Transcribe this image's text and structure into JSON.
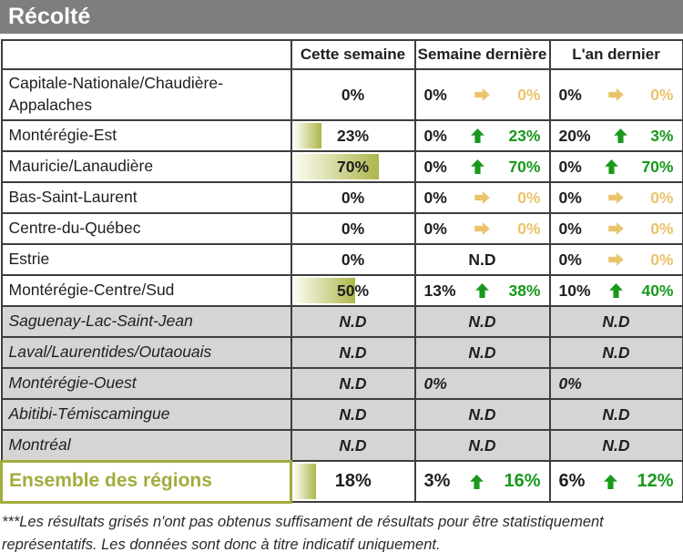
{
  "title": "Récolté",
  "header": {
    "columns": [
      "Cette semaine",
      "Semaine dernière",
      "L'an dernier"
    ]
  },
  "colors": {
    "title_bar": "#7e7e7e",
    "border": "#3e3e3e",
    "grayed_bg": "#d5d5d5",
    "up_green": "#18991b",
    "flat_gold": "#eac46c",
    "olive": "#a2ac3d",
    "bar_start": "#fcfcf2",
    "bar_end": "#aeb64a"
  },
  "icons": {
    "up": "up-arrow-icon",
    "flat": "right-arrow-icon"
  },
  "rows": [
    {
      "region": "Capitale-Nationale/Chaudière-Appalaches",
      "grayed": false,
      "tall": true,
      "this_week": {
        "value": "0%",
        "bar": 0
      },
      "last_week": {
        "from": "0%",
        "trend": "flat",
        "to": "0%"
      },
      "last_year": {
        "from": "0%",
        "trend": "flat",
        "to": "0%"
      }
    },
    {
      "region": "Montérégie-Est",
      "grayed": false,
      "this_week": {
        "value": "23%",
        "bar": 23
      },
      "last_week": {
        "from": "0%",
        "trend": "up",
        "to": "23%"
      },
      "last_year": {
        "from": "20%",
        "trend": "up",
        "to": "3%"
      }
    },
    {
      "region": "Mauricie/Lanaudière",
      "grayed": false,
      "this_week": {
        "value": "70%",
        "bar": 70
      },
      "last_week": {
        "from": "0%",
        "trend": "up",
        "to": "70%"
      },
      "last_year": {
        "from": "0%",
        "trend": "up",
        "to": "70%"
      }
    },
    {
      "region": "Bas-Saint-Laurent",
      "grayed": false,
      "this_week": {
        "value": "0%",
        "bar": 0
      },
      "last_week": {
        "from": "0%",
        "trend": "flat",
        "to": "0%"
      },
      "last_year": {
        "from": "0%",
        "trend": "flat",
        "to": "0%"
      }
    },
    {
      "region": "Centre-du-Québec",
      "grayed": false,
      "this_week": {
        "value": "0%",
        "bar": 0
      },
      "last_week": {
        "from": "0%",
        "trend": "flat",
        "to": "0%"
      },
      "last_year": {
        "from": "0%",
        "trend": "flat",
        "to": "0%"
      }
    },
    {
      "region": "Estrie",
      "grayed": false,
      "this_week": {
        "value": "0%",
        "bar": 0
      },
      "last_week": {
        "nd": "N.D"
      },
      "last_year": {
        "from": "0%",
        "trend": "flat",
        "to": "0%"
      }
    },
    {
      "region": "Montérégie-Centre/Sud",
      "grayed": false,
      "this_week": {
        "value": "50%",
        "bar": 50
      },
      "last_week": {
        "from": "13%",
        "trend": "up",
        "to": "38%"
      },
      "last_year": {
        "from": "10%",
        "trend": "up",
        "to": "40%"
      }
    },
    {
      "region": "Saguenay-Lac-Saint-Jean",
      "grayed": true,
      "this_week": {
        "nd": "N.D"
      },
      "last_week": {
        "nd": "N.D"
      },
      "last_year": {
        "nd": "N.D"
      }
    },
    {
      "region": "Laval/Laurentides/Outaouais",
      "grayed": true,
      "this_week": {
        "nd": "N.D"
      },
      "last_week": {
        "nd": "N.D"
      },
      "last_year": {
        "nd": "N.D"
      }
    },
    {
      "region": "Montérégie-Ouest",
      "grayed": true,
      "this_week": {
        "nd": "N.D"
      },
      "last_week": {
        "single": "0%"
      },
      "last_year": {
        "single": "0%"
      }
    },
    {
      "region": "Abitibi-Témiscamingue",
      "grayed": true,
      "this_week": {
        "nd": "N.D"
      },
      "last_week": {
        "nd": "N.D"
      },
      "last_year": {
        "nd": "N.D"
      }
    },
    {
      "region": "Montréal",
      "grayed": true,
      "this_week": {
        "nd": "N.D"
      },
      "last_week": {
        "nd": "N.D"
      },
      "last_year": {
        "nd": "N.D"
      }
    }
  ],
  "total": {
    "region": "Ensemble des régions",
    "this_week": {
      "value": "18%",
      "bar": 18
    },
    "last_week": {
      "from": "3%",
      "trend": "up",
      "to": "16%"
    },
    "last_year": {
      "from": "6%",
      "trend": "up",
      "to": "12%"
    }
  },
  "footnote": "***Les résultats grisés n'ont pas obtenus suffisament de résultats pour être statistiquement représentatifs. Les données sont donc à titre indicatif uniquement."
}
